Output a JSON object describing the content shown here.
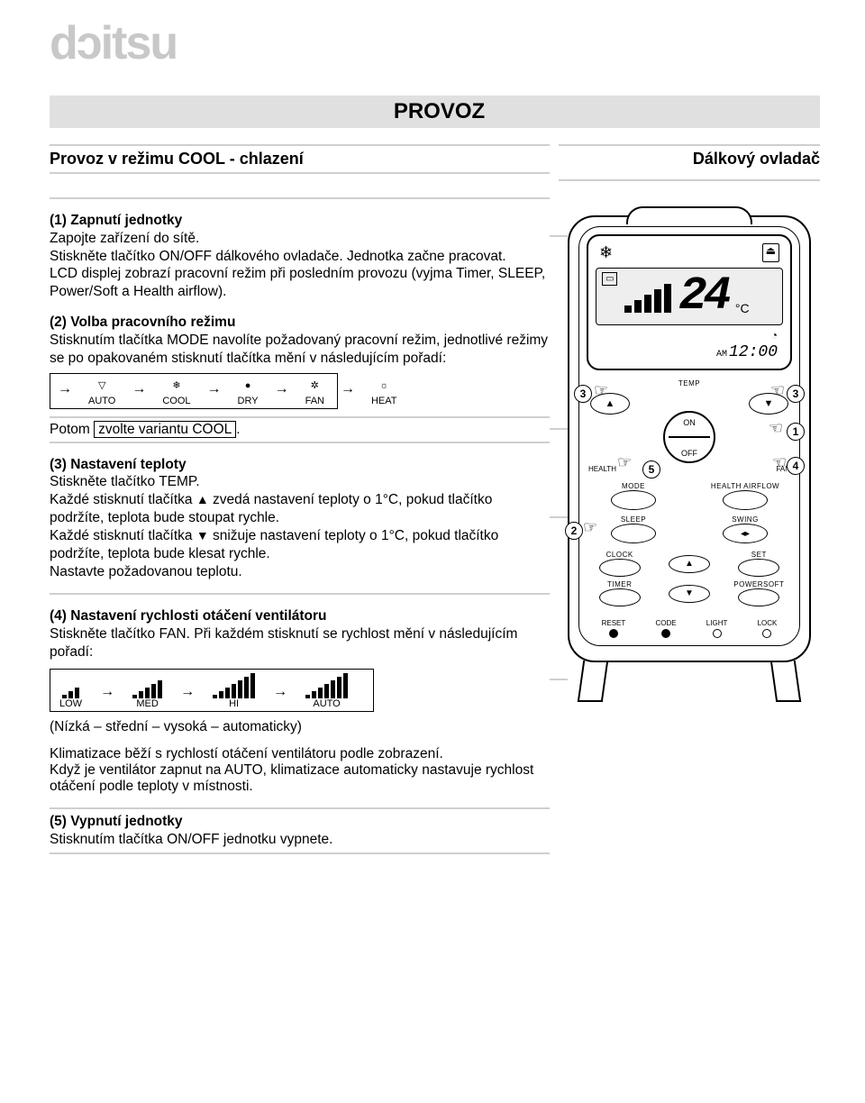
{
  "logo_text": "dɔitsu",
  "title": "PROVOZ",
  "left_heading": "Provoz v režimu COOL - chlazení",
  "remote_heading": "Dálkový ovladač",
  "section1": {
    "title": "(1) Zapnutí jednotky",
    "l1": "Zapojte zařízení do sítě.",
    "l2": "Stiskněte tlačítko ON/OFF dálkového ovladače. Jednotka začne pracovat.",
    "l3": "LCD displej zobrazí pracovní režim při posledním provozu (vyjma Timer, SLEEP, Power/Soft a Health airflow)."
  },
  "section2": {
    "title": "(2) Volba pracovního režimu",
    "l1": "Stisknutím tlačítka MODE navolíte požadovaný pracovní režim, jednotlivé režimy se po opakovaném stisknutí tlačítka mění v následujícím pořadí:"
  },
  "modes": {
    "items": [
      "AUTO",
      "COOL",
      "DRY",
      "FAN",
      "HEAT"
    ],
    "icons": [
      "▽",
      "❄",
      "●",
      "✲",
      "☼"
    ]
  },
  "post_modes_prefix": "Potom ",
  "post_modes_boxed": "zvolte variantu COOL",
  "post_modes_suffix": ".",
  "section3": {
    "title": "(3) Nastavení teploty",
    "l1": "Stiskněte tlačítko TEMP.",
    "l2a": "Každé stisknutí tlačítka ",
    "l2b": " zvedá nastavení teploty o 1°C, pokud tlačítko podržíte, teplota bude stoupat rychle.",
    "l3a": "Každé stisknutí tlačítka ",
    "l3b": " snižuje nastavení teploty o 1°C, pokud tlačítko podržíte, teplota bude klesat rychle.",
    "l4": "Nastavte požadovanou teplotu."
  },
  "section4": {
    "title": "(4) Nastavení rychlosti otáčení ventilátoru",
    "l1": "Stiskněte tlačítko FAN. Při každém stisknutí se rychlost mění v následujícím pořadí:"
  },
  "fan_levels": [
    "LOW",
    "MED",
    "HI",
    "AUTO"
  ],
  "fan_bars": [
    [
      4,
      8,
      12
    ],
    [
      4,
      8,
      12,
      16,
      20
    ],
    [
      4,
      8,
      12,
      16,
      20,
      24,
      28
    ],
    [
      4,
      8,
      12,
      16,
      20,
      24,
      28
    ]
  ],
  "fan_note": "(Nízká – střední – vysoká – automaticky)",
  "fan_text1": "Klimatizace běží s rychlostí otáčení ventilátoru podle zobrazení.",
  "fan_text2": "Když je ventilátor zapnut na AUTO, klimatizace automaticky nastavuje rychlost otáčení podle teploty v místnosti.",
  "section5": {
    "title": "(5) Vypnutí jednotky",
    "l1": "Stisknutím tlačítka ON/OFF jednotku vypnete."
  },
  "remote": {
    "snow": "❄",
    "eject": "⏏",
    "signal_heights": [
      8,
      14,
      20,
      26,
      32
    ],
    "temp_display": "24",
    "unit": "°C",
    "am": "AM",
    "clock_digits": "12:00",
    "clock_icon": "◔",
    "temp_label": "TEMP",
    "up": "▲",
    "down": "▼",
    "on": "ON",
    "off": "OFF",
    "health_label": "HEALTH",
    "fan_label": "FAN",
    "callouts": {
      "c1": "1",
      "c2": "2",
      "c3a": "3",
      "c3b": "3",
      "c4": "4",
      "c5": "5"
    },
    "buttons": {
      "mode": "MODE",
      "health_airflow": "HEALTH AIRFLOW",
      "sleep": "SLEEP",
      "swing": "SWING",
      "clock": "CLOCK",
      "set": "SET",
      "timer": "TIMER",
      "powersoft": "POWERSOFT",
      "reset": "RESET",
      "code": "CODE",
      "light": "LIGHT",
      "lock": "LOCK"
    }
  },
  "colors": {
    "rule": "#cfcfcf",
    "title_bg": "#e0e0e0",
    "logo": "#c8c8c8",
    "text": "#000000",
    "bg": "#ffffff"
  }
}
